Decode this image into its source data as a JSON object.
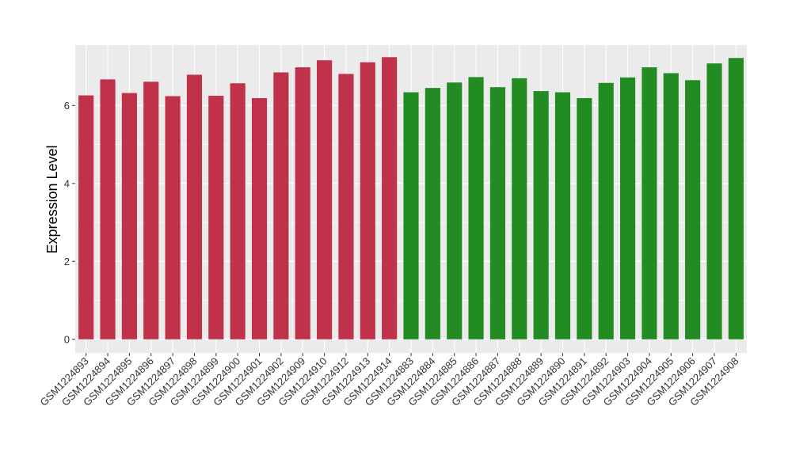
{
  "chart_data": {
    "type": "bar",
    "title": "",
    "xlabel": "",
    "ylabel": "Expression Level",
    "ylim": [
      -0.35,
      7.55
    ],
    "yticks": [
      0,
      2,
      4,
      6
    ],
    "grid": true,
    "legend": "none",
    "categories": [
      "GSM1224893",
      "GSM1224894",
      "GSM1224895",
      "GSM1224896",
      "GSM1224897",
      "GSM1224898",
      "GSM1224899",
      "GSM1224900",
      "GSM1224901",
      "GSM1224902",
      "GSM1224909",
      "GSM1224910",
      "GSM1224912",
      "GSM1224913",
      "GSM1224914",
      "GSM1224883",
      "GSM1224884",
      "GSM1224885",
      "GSM1224886",
      "GSM1224887",
      "GSM1224888",
      "GSM1224889",
      "GSM1224890",
      "GSM1224891",
      "GSM1224892",
      "GSM1224903",
      "GSM1224904",
      "GSM1224905",
      "GSM1224906",
      "GSM1224907",
      "GSM1224908"
    ],
    "values": [
      6.26,
      6.67,
      6.32,
      6.61,
      6.24,
      6.79,
      6.25,
      6.57,
      6.19,
      6.85,
      6.98,
      7.16,
      6.81,
      7.11,
      7.24,
      6.34,
      6.45,
      6.59,
      6.73,
      6.47,
      6.7,
      6.37,
      6.34,
      6.19,
      6.58,
      6.72,
      6.98,
      6.83,
      6.65,
      7.08,
      7.22
    ],
    "bar_colors": [
      "#c0314a",
      "#c0314a",
      "#c0314a",
      "#c0314a",
      "#c0314a",
      "#c0314a",
      "#c0314a",
      "#c0314a",
      "#c0314a",
      "#c0314a",
      "#c0314a",
      "#c0314a",
      "#c0314a",
      "#c0314a",
      "#c0314a",
      "#228b22",
      "#228b22",
      "#228b22",
      "#228b22",
      "#228b22",
      "#228b22",
      "#228b22",
      "#228b22",
      "#228b22",
      "#228b22",
      "#228b22",
      "#228b22",
      "#228b22",
      "#228b22",
      "#228b22",
      "#228b22"
    ],
    "panel_background": "#ebebeb",
    "gridline_color": "#ffffff"
  }
}
